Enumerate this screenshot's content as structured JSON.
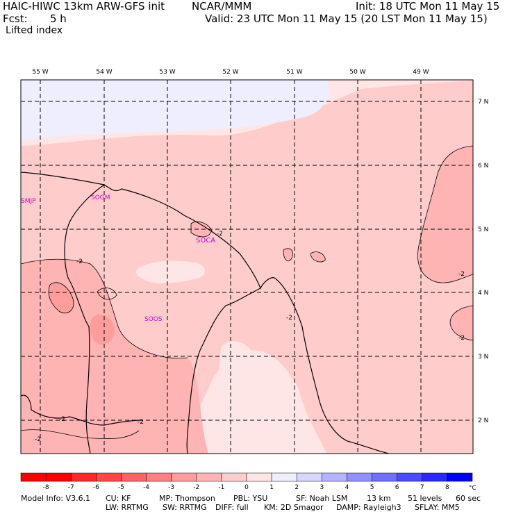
{
  "header": {
    "model_title": "HAIC-HIWC 13km ARW-GFS init",
    "org": "NCAR/MMM",
    "init": "Init: 18 UTC Mon 11 May 15",
    "fcst_label": "Fcst:",
    "fcst_value": "5 h",
    "valid": "Valid: 23 UTC Mon 11 May 15 (20 LST Mon 11 May 15)",
    "field": "Lifted index"
  },
  "map": {
    "lon_labels": [
      "55 W",
      "54 W",
      "53 W",
      "52 W",
      "51 W",
      "50 W",
      "49 W"
    ],
    "lat_labels": [
      "7 N",
      "6 N",
      "5 N",
      "4 N",
      "3 N",
      "2 N"
    ],
    "stations": [
      "SMJP",
      "SOGM",
      "SOCA",
      "SOOS"
    ],
    "contour_labels": [
      "-2",
      "-2",
      "-2",
      "-2",
      "-2",
      "-2",
      "-2",
      "-2"
    ]
  },
  "colorbar": {
    "ticks": [
      "-8",
      "-7",
      "-6",
      "-5",
      "-4",
      "-3",
      "-2",
      "-1",
      "0",
      "1",
      "2",
      "3",
      "4",
      "5",
      "6",
      "7",
      "8"
    ],
    "unit": "°C",
    "colors": [
      "#ff0000",
      "#ff2828",
      "#ff4646",
      "#ff6464",
      "#ff8080",
      "#ff9c9c",
      "#ffb4b4",
      "#ffcccc",
      "#ffe6e6",
      "#eeeeff",
      "#d6d6ff",
      "#b4b4ff",
      "#9090ff",
      "#6e6eff",
      "#4a4aff",
      "#2828ff",
      "#0000ff"
    ]
  },
  "footer": {
    "line1": [
      "Model Info: V3.6.1",
      "CU: KF",
      "MP: Thompson",
      "PBL: YSU",
      "SF: Noah LSM",
      "13 km",
      "51 levels",
      "60 sec"
    ],
    "line2": [
      "LW: RRTMG",
      "SW: RRTMG",
      "DIFF: full",
      "KM: 2D Smagor",
      "DAMP: Rayleigh3",
      "SFLAY: MM5"
    ]
  }
}
